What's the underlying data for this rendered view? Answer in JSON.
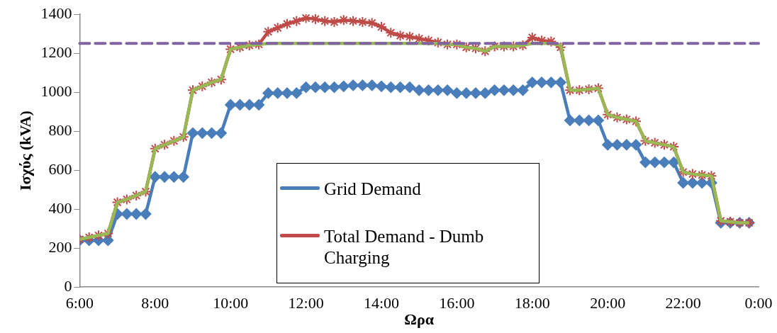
{
  "chart_data": {
    "type": "line",
    "ylabel": "Ισχύς (kVA)",
    "xlabel": "Ωρα",
    "x": [
      6,
      6.25,
      6.5,
      6.75,
      7,
      7.25,
      7.5,
      7.75,
      8,
      8.25,
      8.5,
      8.75,
      9,
      9.25,
      9.5,
      9.75,
      10,
      10.25,
      10.5,
      10.75,
      11,
      11.25,
      11.5,
      11.75,
      12,
      12.25,
      12.5,
      12.75,
      13,
      13.25,
      13.5,
      13.75,
      14,
      14.25,
      14.5,
      14.75,
      15,
      15.25,
      15.5,
      15.75,
      16,
      16.25,
      16.5,
      16.75,
      17,
      17.25,
      17.5,
      17.75,
      18,
      18.25,
      18.5,
      18.75,
      19,
      19.25,
      19.5,
      19.75,
      20,
      20.25,
      20.5,
      20.75,
      21,
      21.25,
      21.5,
      21.75,
      22,
      22.25,
      22.5,
      22.75,
      23,
      23.25,
      23.5,
      23.75
    ],
    "series": [
      {
        "name": "Grid Demand",
        "color": "#4a7ebb",
        "marker": "diamond",
        "values": [
          240,
          240,
          240,
          240,
          375,
          375,
          375,
          375,
          565,
          565,
          565,
          565,
          790,
          790,
          790,
          790,
          935,
          935,
          935,
          935,
          995,
          995,
          995,
          995,
          1025,
          1025,
          1025,
          1025,
          1030,
          1035,
          1035,
          1035,
          1030,
          1025,
          1025,
          1025,
          1010,
          1010,
          1010,
          1010,
          995,
          995,
          995,
          995,
          1010,
          1010,
          1010,
          1010,
          1050,
          1050,
          1050,
          1050,
          855,
          855,
          855,
          855,
          730,
          730,
          730,
          730,
          640,
          640,
          640,
          640,
          535,
          535,
          535,
          535,
          330,
          330,
          330,
          330
        ]
      },
      {
        "name": "Total Demand - Dumb Charging",
        "color": "#be4b48",
        "marker": "cross",
        "values": [
          245,
          255,
          265,
          275,
          435,
          450,
          470,
          490,
          710,
          730,
          750,
          770,
          1010,
          1030,
          1050,
          1065,
          1220,
          1230,
          1240,
          1245,
          1310,
          1330,
          1350,
          1365,
          1380,
          1375,
          1365,
          1360,
          1370,
          1365,
          1360,
          1355,
          1335,
          1305,
          1290,
          1285,
          1275,
          1265,
          1255,
          1245,
          1245,
          1230,
          1225,
          1210,
          1235,
          1235,
          1235,
          1240,
          1280,
          1265,
          1260,
          1230,
          1010,
          1010,
          1015,
          1020,
          885,
          870,
          860,
          850,
          750,
          740,
          730,
          720,
          590,
          580,
          575,
          570,
          340,
          335,
          330,
          330
        ]
      },
      {
        "color": "#98b954",
        "marker": "none",
        "values": [
          245,
          255,
          265,
          275,
          435,
          450,
          470,
          490,
          710,
          730,
          750,
          770,
          1010,
          1030,
          1050,
          1065,
          1220,
          1230,
          1240,
          1245,
          1250,
          1250,
          1250,
          1250,
          1250,
          1250,
          1250,
          1250,
          1250,
          1250,
          1250,
          1250,
          1250,
          1250,
          1250,
          1250,
          1250,
          1250,
          1250,
          1245,
          1245,
          1230,
          1225,
          1210,
          1235,
          1235,
          1235,
          1240,
          1250,
          1250,
          1250,
          1240,
          1010,
          1010,
          1015,
          1020,
          885,
          870,
          860,
          850,
          750,
          740,
          730,
          720,
          590,
          580,
          575,
          570,
          340,
          335,
          330,
          330
        ]
      }
    ],
    "ref_lines": [
      {
        "axis": "y",
        "value": 1250,
        "color": "#8064a2",
        "line_style": "dashed"
      }
    ],
    "xlim": [
      6,
      24
    ],
    "xticks": [
      {
        "value": 6,
        "label": "6:00"
      },
      {
        "value": 8,
        "label": "8:00"
      },
      {
        "value": 10,
        "label": "10:00"
      },
      {
        "value": 12,
        "label": "12:00"
      },
      {
        "value": 14,
        "label": "14:00"
      },
      {
        "value": 16,
        "label": "16:00"
      },
      {
        "value": 18,
        "label": "18:00"
      },
      {
        "value": 20,
        "label": "20:00"
      },
      {
        "value": 22,
        "label": "22:00"
      },
      {
        "value": 24,
        "label": "0:00"
      }
    ],
    "ylim": [
      0,
      1400
    ],
    "yticks": [
      0,
      200,
      400,
      600,
      800,
      1000,
      1200,
      1400
    ],
    "grid": false,
    "legend": "bottom"
  }
}
